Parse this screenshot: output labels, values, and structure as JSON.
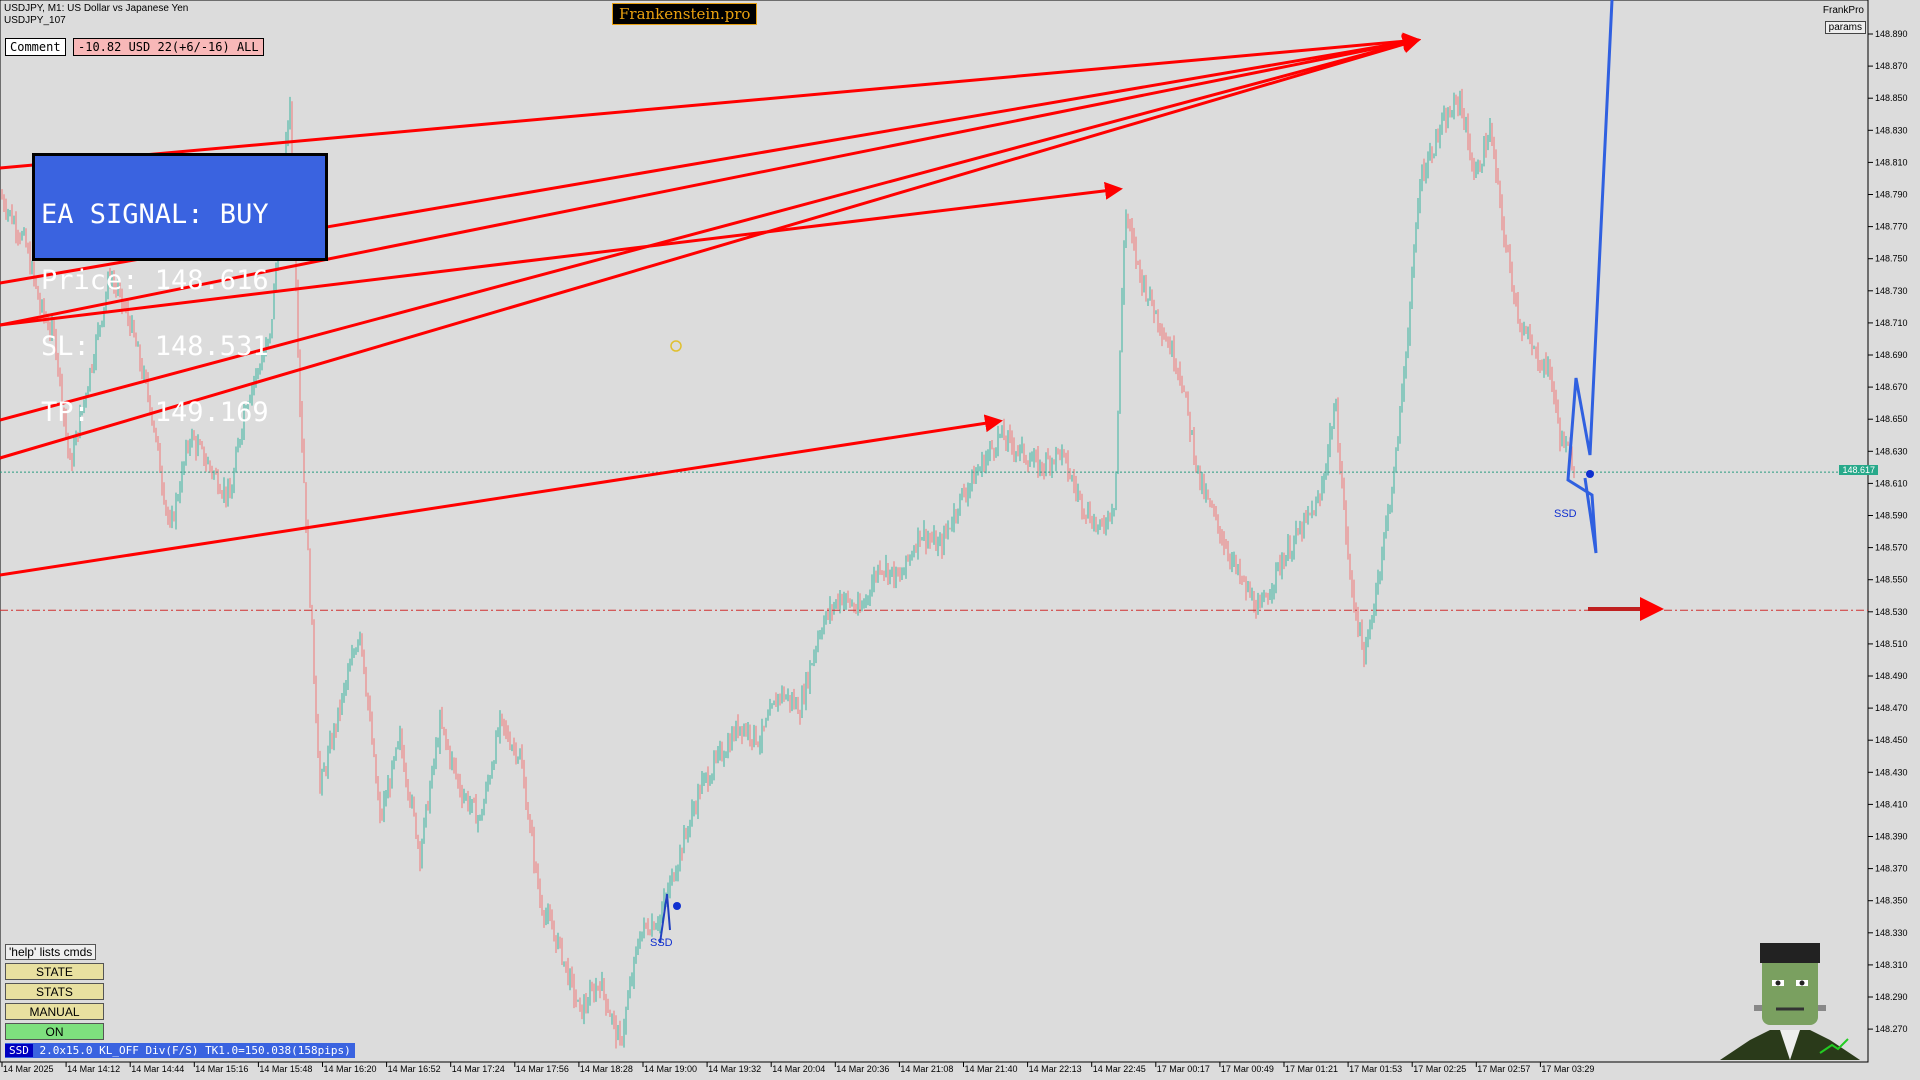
{
  "header": {
    "title_line1": "USDJPY, M1:  US Dollar vs Japanese Yen",
    "title_line2": "USDJPY_107",
    "banner": "Frankenstein.pro",
    "brand": "FrankPro",
    "params_button": "params"
  },
  "comment": {
    "label": "Comment",
    "value": "-10.82 USD 22(+6/-16) ALL"
  },
  "signal_box": {
    "line1": "EA SIGNAL: BUY",
    "line2": "Price: 148.616",
    "line3": "SL:    148.531",
    "line4": "TP:    149.169"
  },
  "buttons": {
    "help": "'help' lists cmds",
    "state": "STATE",
    "stats": "STATS",
    "manual": "MANUAL",
    "on": "ON"
  },
  "status_bar": {
    "tag": "SSD",
    "text": "2.0x15.0 KL_OFF Div(F/S) TK1.0=150.038(158pips)"
  },
  "current_price_tag": "148.617",
  "markers": {
    "ssd_left": "SSD",
    "ssd_right": "SSD"
  },
  "price_axis": [
    "148.890",
    "148.870",
    "148.850",
    "148.830",
    "148.810",
    "148.790",
    "148.770",
    "148.750",
    "148.730",
    "148.710",
    "148.690",
    "148.670",
    "148.650",
    "148.630",
    "148.610",
    "148.590",
    "148.570",
    "148.550",
    "148.530",
    "148.510",
    "148.490",
    "148.470",
    "148.450",
    "148.430",
    "148.410",
    "148.390",
    "148.370",
    "148.350",
    "148.330",
    "148.310",
    "148.290",
    "148.270"
  ],
  "time_axis": [
    "14 Mar 2025",
    "14 Mar 14:12",
    "14 Mar 14:44",
    "14 Mar 15:16",
    "14 Mar 15:48",
    "14 Mar 16:20",
    "14 Mar 16:52",
    "14 Mar 17:24",
    "14 Mar 17:56",
    "14 Mar 18:28",
    "14 Mar 19:00",
    "14 Mar 19:32",
    "14 Mar 20:04",
    "14 Mar 20:36",
    "14 Mar 21:08",
    "14 Mar 21:40",
    "14 Mar 22:13",
    "14 Mar 22:45",
    "17 Mar 00:17",
    "17 Mar 00:49",
    "17 Mar 01:21",
    "17 Mar 01:53",
    "17 Mar 02:25",
    "17 Mar 02:57",
    "17 Mar 03:29"
  ],
  "colors": {
    "bull": "#3ab5a0",
    "bear": "#f07878",
    "arrow": "#ff0000",
    "signal_bg": "#3a63e0",
    "button_on": "#7ee07e"
  }
}
